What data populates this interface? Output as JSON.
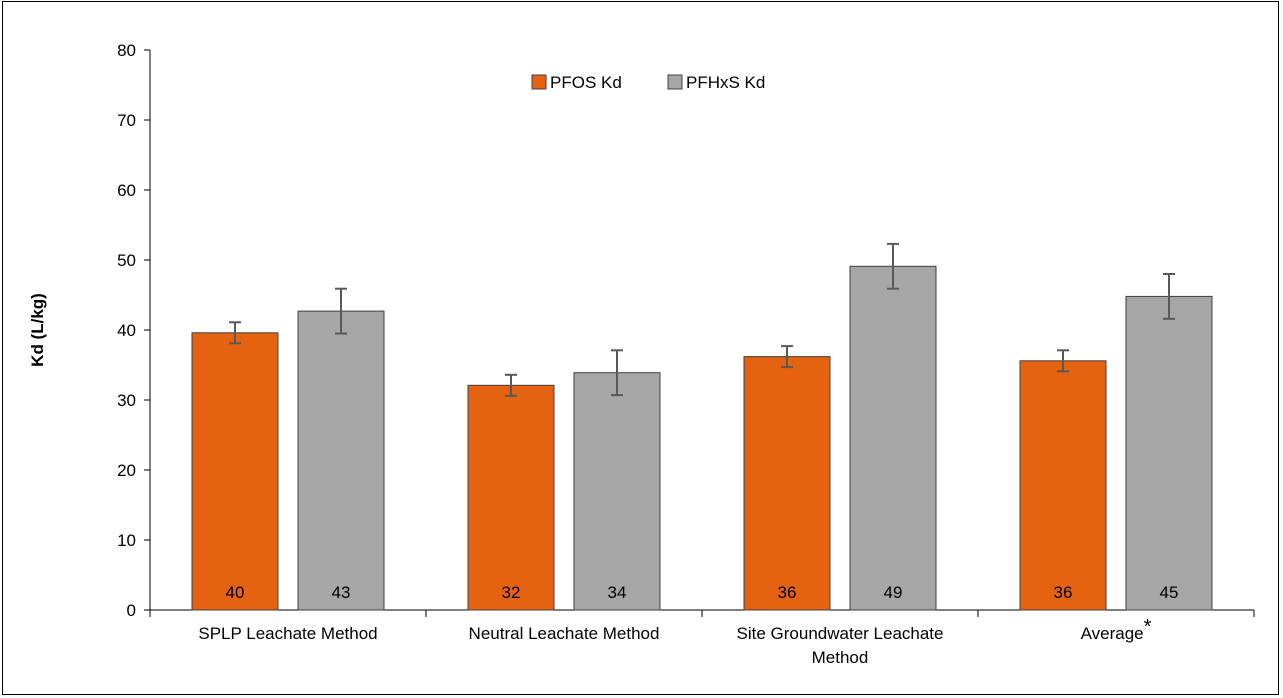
{
  "chart_data": {
    "type": "bar",
    "ylabel": "Kd (L/kg)",
    "xlabel": "",
    "ylim": [
      0,
      80
    ],
    "yticks": [
      0,
      10,
      20,
      30,
      40,
      50,
      60,
      70,
      80
    ],
    "grid": false,
    "legend_position": "top-center",
    "categories": [
      [
        "SPLP Leachate Method"
      ],
      [
        "Neutral Leachate Method"
      ],
      [
        "Site Groundwater Leachate",
        "Method"
      ],
      [
        "Average*"
      ]
    ],
    "series": [
      {
        "name": "PFOS Kd",
        "color": "#E46210",
        "values": [
          39.6,
          32.1,
          36.2,
          35.6
        ],
        "labels": [
          "40",
          "32",
          "36",
          "36"
        ],
        "error": [
          1.5,
          1.5,
          1.5,
          1.5
        ]
      },
      {
        "name": "PFHxS Kd",
        "color": "#A6A6A6",
        "values": [
          42.7,
          33.9,
          49.1,
          44.8
        ],
        "labels": [
          "43",
          "34",
          "49",
          "45"
        ],
        "error": [
          3.2,
          3.2,
          3.2,
          3.2
        ]
      }
    ]
  }
}
